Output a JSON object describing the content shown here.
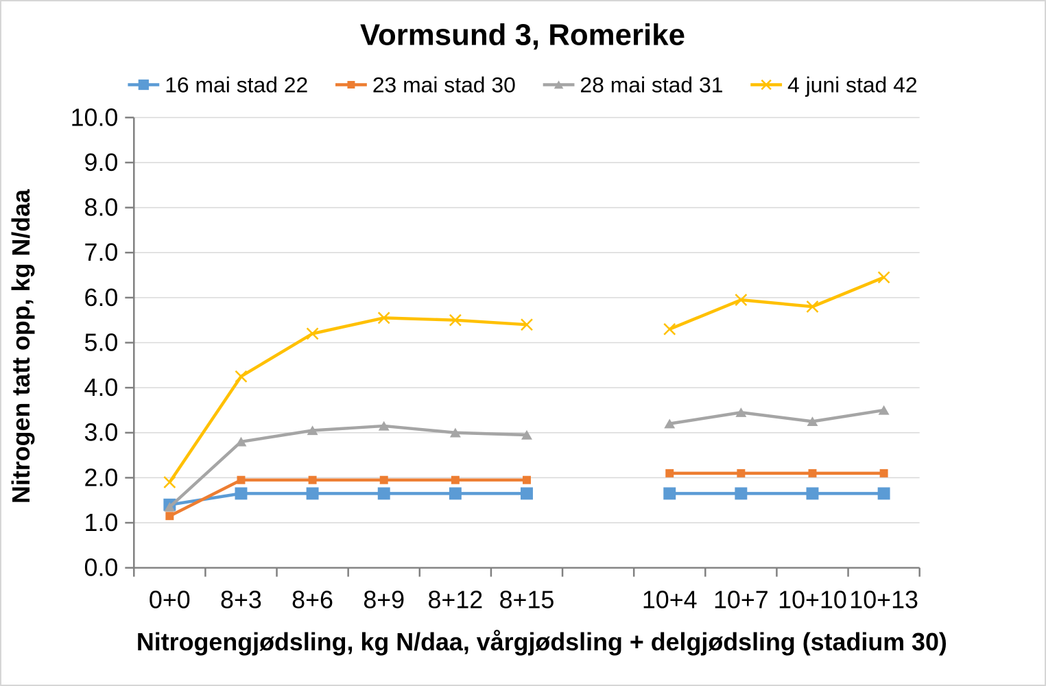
{
  "chart_data": {
    "type": "line",
    "title": "Vormsund 3, Romerike",
    "xlabel": "Nitrogengjødsling, kg N/daa, vårgjødsling + delgjødsling (stadium 30)",
    "ylabel": "Nitrogen tatt opp, kg N/daa",
    "categories": [
      "0+0",
      "8+3",
      "8+6",
      "8+9",
      "8+12",
      "8+15",
      "",
      "10+4",
      "10+7",
      "10+10",
      "10+13"
    ],
    "series": [
      {
        "name": "16 mai stad 22",
        "color": "#5B9BD5",
        "marker": "square",
        "marker_size": 18,
        "values": [
          1.4,
          1.65,
          1.65,
          1.65,
          1.65,
          1.65,
          null,
          1.65,
          1.65,
          1.65,
          1.65
        ]
      },
      {
        "name": "23 mai stad 30",
        "color": "#ED7D31",
        "marker": "square",
        "marker_size": 12,
        "values": [
          1.15,
          1.95,
          1.95,
          1.95,
          1.95,
          1.95,
          null,
          2.1,
          2.1,
          2.1,
          2.1
        ]
      },
      {
        "name": "28 mai stad 31",
        "color": "#A5A5A5",
        "marker": "triangle",
        "marker_size": 16,
        "values": [
          1.35,
          2.8,
          3.05,
          3.15,
          3.0,
          2.95,
          null,
          3.2,
          3.45,
          3.25,
          3.5
        ]
      },
      {
        "name": "4 juni stad 42",
        "color": "#FFC000",
        "marker": "x",
        "marker_size": 16,
        "values": [
          1.9,
          4.25,
          5.2,
          5.55,
          5.5,
          5.4,
          null,
          5.3,
          5.95,
          5.8,
          6.45
        ]
      }
    ],
    "ylim": [
      0,
      10
    ],
    "ytick_step": 1.0,
    "ytick_format": "one_decimal",
    "grid": "horizontal",
    "legend_position": "top",
    "gridline_color": "#D9D9D9",
    "axis_color": "#808080",
    "text_color": "#000000"
  }
}
